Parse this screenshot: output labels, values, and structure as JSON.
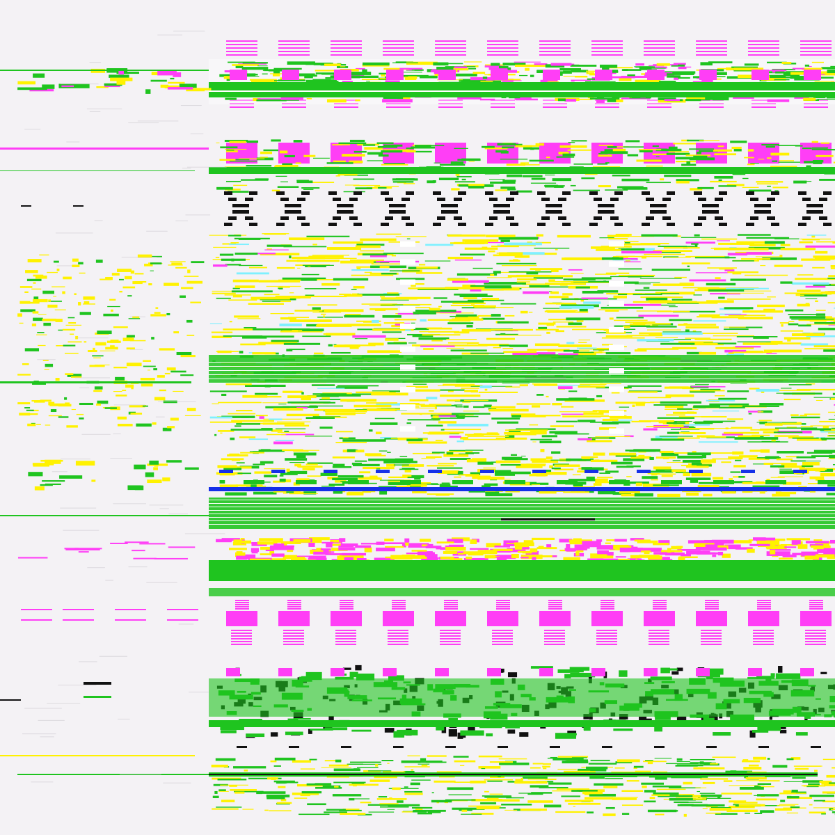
{
  "palette": {
    "background": "#f4f2f5",
    "magenta": "#ff3ef6",
    "green": "#1fc41f",
    "yellow": "#fff200",
    "blue": "#1530e8",
    "black": "#111111",
    "white": "#ffffff",
    "cyan": "#7ef0ff"
  },
  "bands": [
    {
      "pattern": "magenta-dashes"
    },
    {
      "pattern": "green-yellow-waves"
    },
    {
      "pattern": "magenta-blocks"
    },
    {
      "pattern": "black-x-marks"
    },
    {
      "pattern": "yellow-green-noise"
    },
    {
      "pattern": "green-yellow-waves-blue"
    },
    {
      "pattern": "magenta-ridge"
    },
    {
      "pattern": "magenta-crosses"
    },
    {
      "pattern": "black-green-blocks"
    },
    {
      "pattern": "yellow-green-noise"
    }
  ]
}
